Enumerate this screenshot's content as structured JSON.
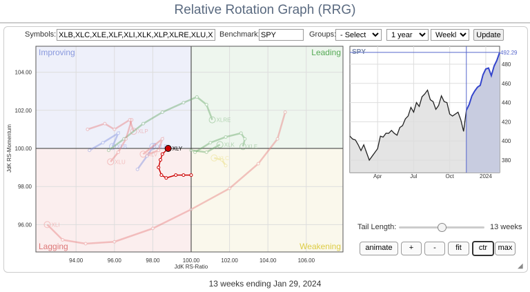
{
  "title": "Relative Rotation Graph (RRG)",
  "toolbar": {
    "symbols_label": "Symbols:",
    "symbols_value": "XLB,XLC,XLE,XLF,XLI,XLK,XLP,XLRE,XLU,XLV,XLY",
    "benchmark_label": "Benchmark:",
    "benchmark_value": "SPY",
    "groups_label": "Groups:",
    "groups_value": "- Select -",
    "period_value": "1 year",
    "frequency_value": "Weekly",
    "update_label": "Update"
  },
  "rrg": {
    "quadrants": {
      "improving": "Improving",
      "leading": "Leading",
      "lagging": "Lagging",
      "weakening": "Weakening"
    },
    "xlabel": "JdK RS-Ratio",
    "ylabel": "JdK RS-Momentum",
    "xticks": [
      "94.00",
      "96.00",
      "98.00",
      "100.00",
      "102.00",
      "104.00",
      "106.00"
    ],
    "yticks": [
      "104.00",
      "102.00",
      "100.00",
      "98.00",
      "96.00"
    ],
    "colors": {
      "improving": "#eef0fa",
      "leading": "#eef6ee",
      "lagging": "#fbeeee",
      "weakening": "#faf8ec"
    },
    "tails": [
      {
        "symbol": "XLY",
        "color": "#cc0000",
        "highlight": true,
        "points": [
          [
            100.0,
            98.6
          ],
          [
            99.6,
            98.6
          ],
          [
            99.2,
            98.6
          ],
          [
            98.7,
            98.45
          ],
          [
            98.45,
            98.6
          ],
          [
            98.3,
            99.0
          ],
          [
            98.4,
            99.4
          ],
          [
            98.5,
            99.7
          ],
          [
            98.8,
            100.0
          ]
        ]
      },
      {
        "symbol": "XLRE",
        "color": "#6aaa6a",
        "points": [
          [
            95.7,
            99.9
          ],
          [
            96.5,
            100.5
          ],
          [
            97.5,
            101.3
          ],
          [
            98.5,
            101.9
          ],
          [
            99.6,
            102.4
          ],
          [
            100.3,
            102.7
          ],
          [
            100.8,
            102.3
          ],
          [
            101.1,
            101.5
          ]
        ]
      },
      {
        "symbol": "XLE",
        "color": "#6aaa6a",
        "points": [
          [
            100.2,
            99.8
          ],
          [
            101.0,
            100.3
          ],
          [
            101.8,
            100.6
          ],
          [
            102.6,
            100.8
          ],
          [
            102.8,
            100.5
          ],
          [
            102.7,
            100.1
          ]
        ]
      },
      {
        "symbol": "XLK",
        "color": "#6aaa6a",
        "points": [
          [
            100.0,
            99.9
          ],
          [
            100.8,
            99.8
          ],
          [
            101.5,
            100.2
          ]
        ]
      },
      {
        "symbol": "XLC",
        "color": "#e8d870",
        "points": [
          [
            101.8,
            99.1
          ],
          [
            101.6,
            99.4
          ],
          [
            101.2,
            99.5
          ]
        ]
      },
      {
        "symbol": "XLU",
        "color": "#e88080",
        "points": [
          [
            96.9,
            101.5
          ],
          [
            96.6,
            100.5
          ],
          [
            96.2,
            99.8
          ],
          [
            95.8,
            99.3
          ]
        ]
      },
      {
        "symbol": "XLP",
        "color": "#e88080",
        "points": [
          [
            94.6,
            101.0
          ],
          [
            95.5,
            101.3
          ],
          [
            96.0,
            101.0
          ],
          [
            96.8,
            101.5
          ],
          [
            97.0,
            100.9
          ]
        ]
      },
      {
        "symbol": "XLB",
        "color": "#8090e0",
        "points": [
          [
            94.7,
            99.9
          ],
          [
            95.4,
            100.3
          ],
          [
            96.2,
            100.8
          ],
          [
            95.9,
            100.1
          ]
        ]
      },
      {
        "symbol": "XLF",
        "color": "#8090e0",
        "points": [
          [
            97.2,
            98.9
          ],
          [
            97.7,
            99.6
          ],
          [
            98.1,
            100.2
          ],
          [
            98.0,
            100.1
          ]
        ]
      },
      {
        "symbol": "XLV",
        "color": "#e88080",
        "points": [
          [
            97.8,
            99.7
          ],
          [
            98.3,
            99.9
          ],
          [
            98.5,
            100.5
          ],
          [
            97.5,
            99.7
          ]
        ]
      },
      {
        "symbol": "XLI",
        "color": "#e88080",
        "points": [
          [
            104.9,
            101.9
          ],
          [
            104.5,
            100.5
          ],
          [
            103.5,
            99.2
          ],
          [
            102,
            97.9
          ],
          [
            100,
            96.8
          ],
          [
            98,
            95.8
          ],
          [
            96,
            95.1
          ],
          [
            94.5,
            95.0
          ],
          [
            93.3,
            95.2
          ],
          [
            92.5,
            96.0
          ]
        ]
      }
    ]
  },
  "spy": {
    "label": "SPY",
    "last_value": "492.29",
    "yticks": [
      "480",
      "460",
      "440",
      "420",
      "400",
      "380"
    ],
    "xticks": [
      "Apr",
      "Jul",
      "Oct",
      "2024"
    ],
    "tail_weeks": 13,
    "values": [
      405,
      402,
      401,
      396,
      390,
      396,
      388,
      380,
      384,
      388,
      392,
      405,
      404,
      408,
      408,
      411,
      408,
      406,
      414,
      416,
      423,
      426,
      435,
      430,
      440,
      436,
      446,
      449,
      453,
      443,
      441,
      433,
      437,
      447,
      441,
      440,
      428,
      426,
      428,
      430,
      422,
      410,
      432,
      438,
      447,
      452,
      456,
      458,
      469,
      475,
      476,
      468,
      478,
      484,
      492.29
    ]
  },
  "controls": {
    "tail_length_label": "Tail Length:",
    "tail_length_value": "13 weeks",
    "tail_fraction": 0.5,
    "animate": "animate",
    "plus": "+",
    "minus": "-",
    "fit": "fit",
    "ctr": "ctr",
    "max": "max"
  },
  "footer": "13 weeks ending Jan 29, 2024"
}
